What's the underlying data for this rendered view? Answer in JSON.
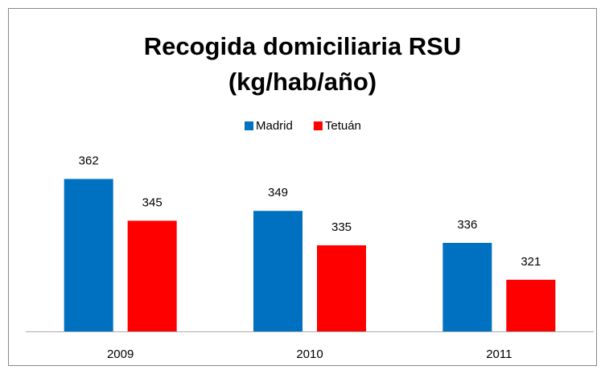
{
  "chart_data": {
    "type": "bar",
    "title": [
      "Recogida domiciliaria RSU",
      "(kg/hab/año)"
    ],
    "categories": [
      "2009",
      "2010",
      "2011"
    ],
    "series": [
      {
        "name": "Madrid",
        "color": "#0070c0",
        "values": [
          362,
          349,
          336
        ]
      },
      {
        "name": "Tetuán",
        "color": "#ff0000",
        "values": [
          345,
          335,
          321
        ]
      }
    ],
    "ylim": [
      300,
      370
    ],
    "legend": "top"
  }
}
